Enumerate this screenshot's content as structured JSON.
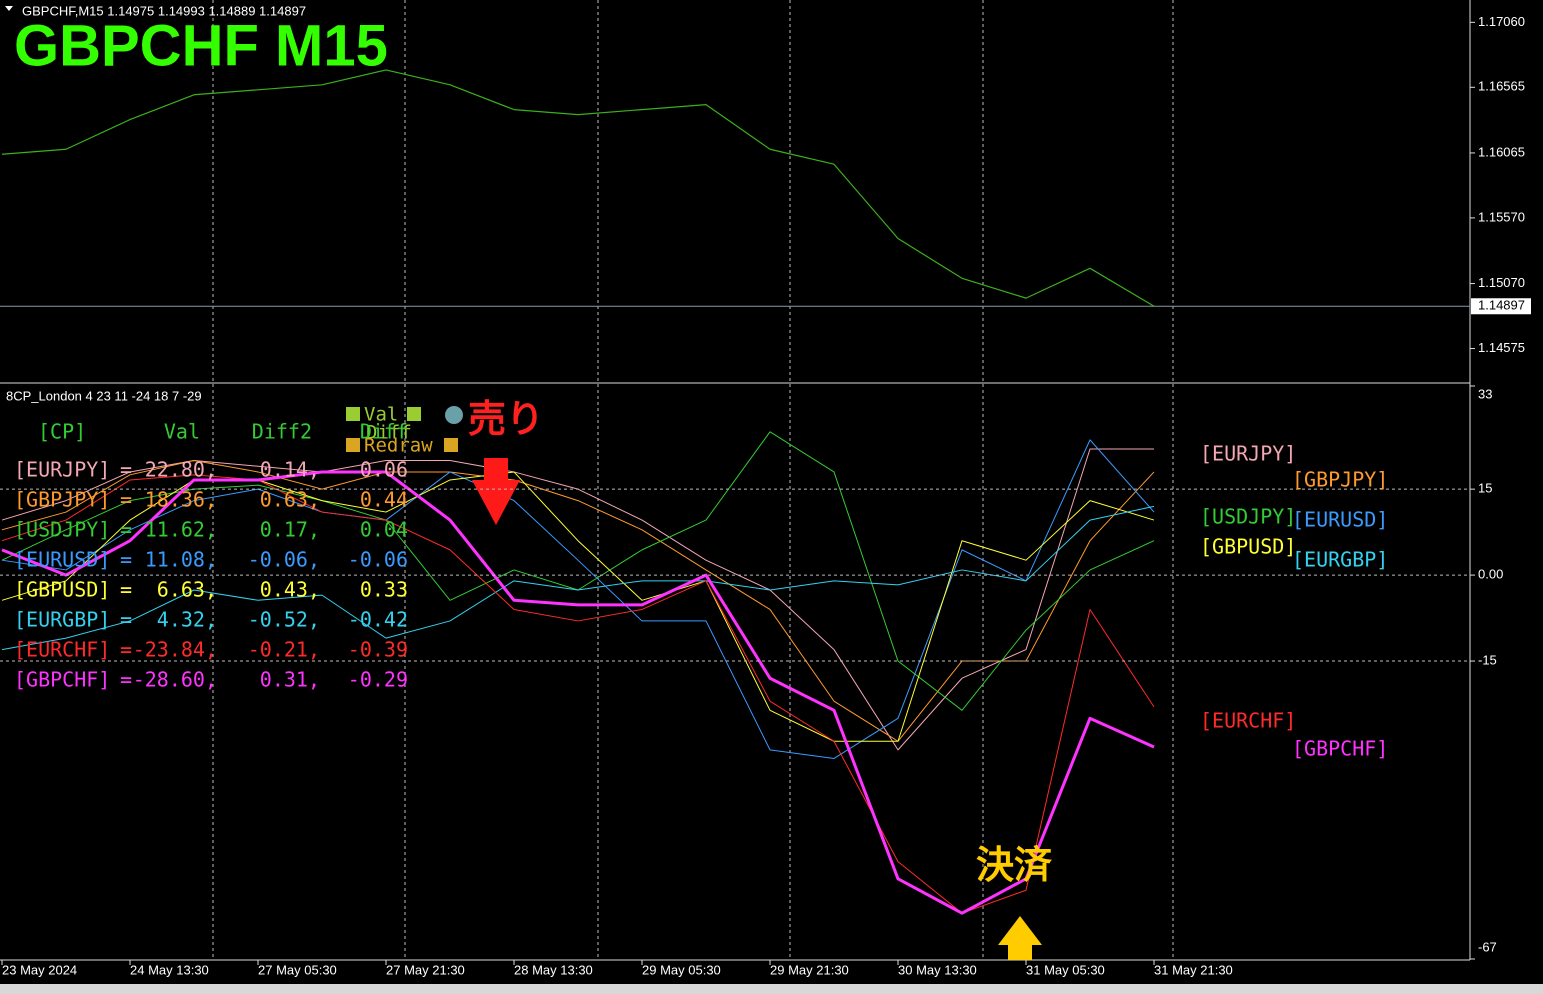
{
  "chart_data": [
    {
      "type": "line",
      "title": "GBPCHF  M15",
      "header": "GBPCHF,M15  1.14975 1.14993 1.14889 1.14897",
      "values": [
        1.16055,
        1.16093,
        1.16319,
        1.16508,
        1.16546,
        1.16584,
        1.16697,
        1.16584,
        1.16395,
        1.16357,
        1.16395,
        1.16433,
        1.16093,
        1.15979,
        1.15413,
        1.1511,
        1.14959,
        1.15186,
        1.14897
      ],
      "color": "#3cb01c",
      "ylim": [
        1.1432,
        1.1723
      ],
      "yticks": [
        {
          "value": 1.1706,
          "label": "1.17060"
        },
        {
          "value": 1.16565,
          "label": "1.16565"
        },
        {
          "value": 1.16065,
          "label": "1.16065"
        },
        {
          "value": 1.1557,
          "label": "1.15570"
        },
        {
          "value": 1.1507,
          "label": "1.15070"
        },
        {
          "value": 1.14575,
          "label": "1.14575"
        }
      ],
      "current_price": 1.14897
    },
    {
      "type": "line",
      "title": "8CP_London 4 23 11 -24 18 7 -29",
      "categories": [
        "23 May 2024",
        null,
        "24 May 13:30",
        null,
        "27 May 05:30",
        null,
        "27 May 21:30",
        null,
        "28 May 13:30",
        null,
        "29 May 05:30",
        null,
        "29 May 21:30",
        null,
        "30 May 13:30",
        null,
        "31 May 05:30",
        null,
        "31 May 21:30"
      ],
      "series": [
        {
          "name": "[EURJPY]",
          "color": "#f4a7b4",
          "values": [
            9.6,
            13,
            18,
            20,
            19,
            18,
            20,
            20,
            18,
            15,
            9.6,
            2.6,
            -2.6,
            -13,
            -30.5,
            -18,
            -13,
            22,
            22
          ]
        },
        {
          "name": "[GBPJPY]",
          "color": "#ff9a2e",
          "values": [
            7.9,
            11,
            17.5,
            20,
            18,
            15,
            18,
            18,
            16.6,
            13,
            7.9,
            0.9,
            -6,
            -22,
            -29,
            -15,
            -15,
            6,
            18
          ]
        },
        {
          "name": "[USDJPY]",
          "color": "#33cc33",
          "values": [
            2.6,
            7.9,
            13,
            15,
            15.7,
            13,
            9.6,
            -4.4,
            0.9,
            -2.6,
            4.4,
            9.6,
            25,
            18,
            -15,
            -23.6,
            -9.6,
            0.9,
            6
          ]
        },
        {
          "name": "[EURUSD]",
          "color": "#3a9bff",
          "values": [
            2.6,
            0.9,
            7.9,
            13,
            15,
            11,
            9.6,
            18,
            13,
            2.6,
            -8,
            -8,
            -30.5,
            -32,
            -25,
            4.4,
            -1,
            23.6,
            11
          ]
        },
        {
          "name": "[GBPUSD]",
          "color": "#ffff33",
          "values": [
            -4.4,
            -1,
            9.6,
            16.6,
            16.6,
            13,
            11,
            16.6,
            18,
            6,
            -4.4,
            -1,
            -23.6,
            -29,
            -29,
            6,
            2.6,
            13,
            9.6
          ]
        },
        {
          "name": "[EURGBP]",
          "color": "#33d2f0",
          "values": [
            -13,
            -11,
            -8,
            -2.6,
            -4.4,
            -3.5,
            -11,
            -8,
            -1,
            -2.6,
            -1,
            -1,
            -2.6,
            -1,
            -1.7,
            0.9,
            -1,
            9.6,
            12
          ]
        },
        {
          "name": "[EURCHF]",
          "color": "#ff2a2a",
          "values": [
            6,
            9.6,
            16.6,
            17.5,
            16.6,
            11,
            9.6,
            4.4,
            -6,
            -8,
            -6,
            -1,
            -22,
            -29,
            -50,
            -59,
            -55,
            -6,
            -23
          ]
        },
        {
          "name": "[GBPCHF]",
          "color": "#ff33ff",
          "values": [
            4.4,
            0,
            6,
            16.6,
            16.6,
            18,
            18,
            9.6,
            -4.4,
            -5.2,
            -5.2,
            0,
            -18,
            -23.6,
            -53,
            -59,
            -53,
            -25,
            -30
          ]
        }
      ],
      "ylim": [
        -67,
        33
      ],
      "yticks": [
        33,
        15,
        {
          "value": 0,
          "label": "0.00"
        },
        -15,
        -67
      ],
      "grid": true,
      "table": {
        "header": [
          "[CP]",
          "Val",
          "Diff2",
          "Diff"
        ],
        "rows": [
          [
            "=",
            "22.80,",
            "0.14,",
            "0.06"
          ],
          [
            "=",
            "18.36,",
            "0.63,",
            "0.44"
          ],
          [
            "=",
            "11.62,",
            "0.17,",
            "0.04"
          ],
          [
            "=",
            "11.08,",
            "-0.06,",
            "-0.06"
          ],
          [
            "=",
            "6.63,",
            "0.43,",
            "0.33"
          ],
          [
            "=",
            "4.32,",
            "-0.52,",
            "-0.42"
          ],
          [
            "=",
            "-23.84,",
            "-0.21,",
            "-0.39"
          ],
          [
            "=",
            "-28.60,",
            "0.31,",
            "-0.29"
          ]
        ]
      },
      "markers": [
        "Val",
        "Diff",
        "Redraw"
      ],
      "annotations": [
        "売り",
        "決済"
      ]
    }
  ]
}
